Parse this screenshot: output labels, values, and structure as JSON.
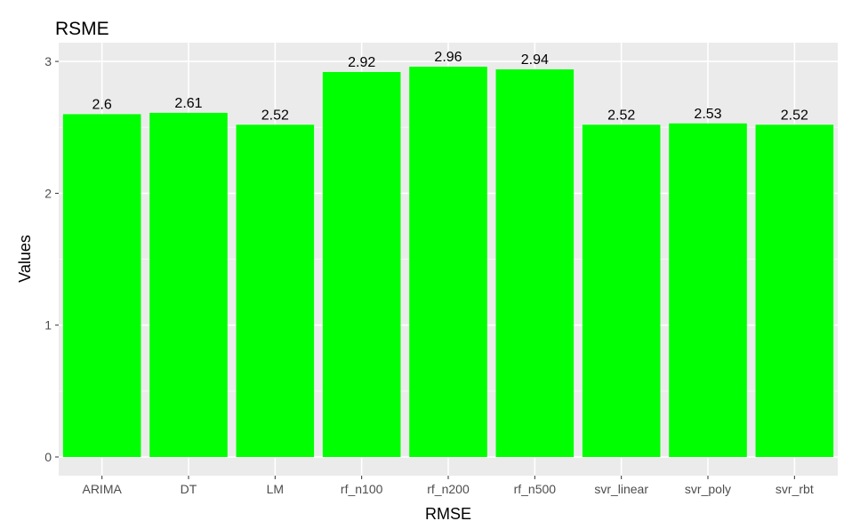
{
  "chart_data": {
    "type": "bar",
    "title": "RSME",
    "xlabel": "RMSE",
    "ylabel": "Values",
    "categories": [
      "ARIMA",
      "DT",
      "LM",
      "rf_n100",
      "rf_n200",
      "rf_n500",
      "svr_linear",
      "svr_poly",
      "svr_rbt"
    ],
    "values": [
      2.6,
      2.61,
      2.52,
      2.92,
      2.96,
      2.94,
      2.52,
      2.53,
      2.52
    ],
    "data_labels": [
      "2.6",
      "2.61",
      "2.52",
      "2.92",
      "2.96",
      "2.94",
      "2.52",
      "2.53",
      "2.52"
    ],
    "yticks": [
      0,
      1,
      2,
      3
    ],
    "ytick_labels": [
      "0",
      "1",
      "2",
      "3"
    ],
    "ylim": [
      0,
      3.0
    ],
    "grid": true,
    "legend": "none",
    "colors": {
      "bar": "#00ff00",
      "panel_background": "#ebebeb",
      "grid": "#ffffff"
    }
  }
}
